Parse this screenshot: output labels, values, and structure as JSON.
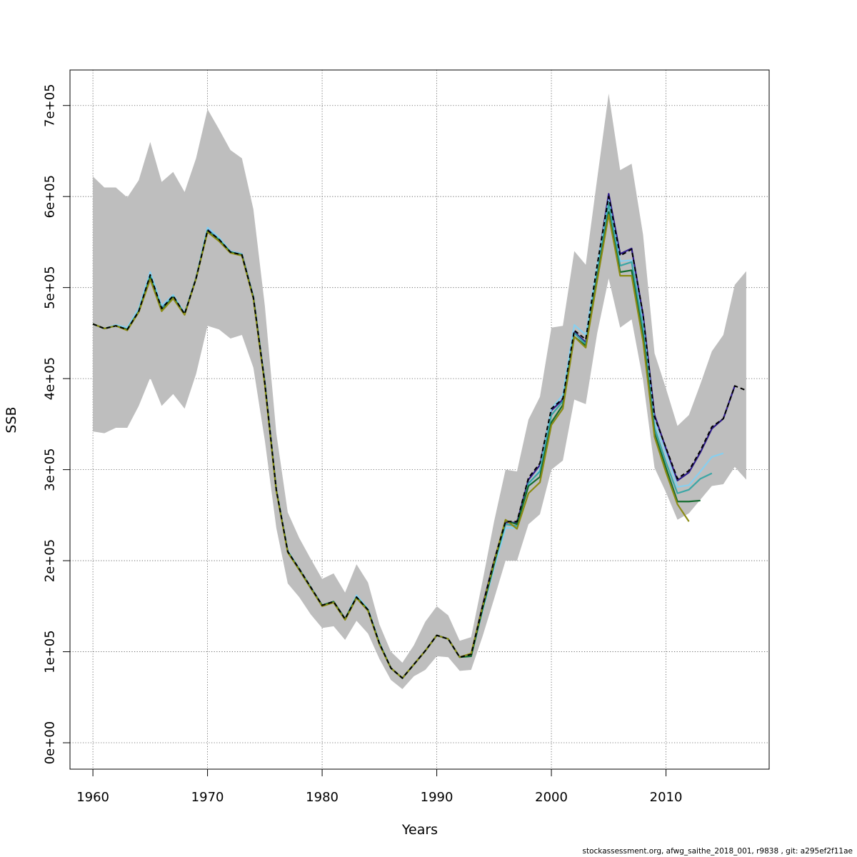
{
  "footer": "stockassessment.org, afwg_saithe_2018_001, r9838 , git: a295ef2f11ae",
  "chart_data": {
    "type": "line",
    "xlabel": "Years",
    "ylabel": "SSB",
    "xlim": [
      1958,
      2019
    ],
    "ylim": [
      -29000,
      739000
    ],
    "x_ticks": [
      1960,
      1970,
      1980,
      1990,
      2000,
      2010
    ],
    "y_ticks": [
      0,
      100000,
      200000,
      300000,
      400000,
      500000,
      600000,
      700000
    ],
    "y_tick_labels": [
      "0e+00",
      "1e+05",
      "2e+05",
      "3e+05",
      "4e+05",
      "5e+05",
      "6e+05",
      "7e+05"
    ],
    "grid": true,
    "legend": "none",
    "band_color": "#bebebe",
    "confidence_band": {
      "x": [
        1960,
        1961,
        1962,
        1963,
        1964,
        1965,
        1966,
        1967,
        1968,
        1969,
        1970,
        1971,
        1972,
        1973,
        1974,
        1975,
        1976,
        1977,
        1978,
        1979,
        1980,
        1981,
        1982,
        1983,
        1984,
        1985,
        1986,
        1987,
        1988,
        1989,
        1990,
        1991,
        1992,
        1993,
        1994,
        1995,
        1996,
        1997,
        1998,
        1999,
        2000,
        2001,
        2002,
        2003,
        2004,
        2005,
        2006,
        2007,
        2008,
        2009,
        2010,
        2011,
        2012,
        2013,
        2014,
        2015,
        2016,
        2017
      ],
      "upper": [
        622000,
        610000,
        610000,
        599000,
        618000,
        660000,
        616000,
        627000,
        605000,
        642000,
        696000,
        674000,
        651000,
        642000,
        586000,
        480000,
        340000,
        253000,
        225000,
        202000,
        180000,
        186000,
        165000,
        196000,
        176000,
        130000,
        100000,
        88000,
        107000,
        133000,
        150000,
        140000,
        112000,
        116000,
        178000,
        243000,
        300000,
        298000,
        355000,
        380000,
        456000,
        458000,
        540000,
        525000,
        620000,
        713000,
        629000,
        636000,
        558000,
        428000,
        389000,
        348000,
        360000,
        394000,
        430000,
        448000,
        503000,
        518000
      ],
      "lower": [
        342000,
        340000,
        346000,
        346000,
        370000,
        401000,
        370000,
        383000,
        367000,
        405000,
        458000,
        454000,
        444000,
        448000,
        412000,
        332000,
        236000,
        175000,
        160000,
        141000,
        126000,
        128000,
        113000,
        134000,
        120000,
        92000,
        69000,
        59000,
        73000,
        80000,
        95000,
        94000,
        79000,
        80000,
        117000,
        158000,
        200000,
        200000,
        240000,
        251000,
        300000,
        310000,
        377000,
        372000,
        450000,
        510000,
        456000,
        465000,
        398000,
        302000,
        275000,
        245000,
        252000,
        267000,
        282000,
        284000,
        303000,
        289000
      ]
    },
    "series": [
      {
        "color": "#000000",
        "dash": true,
        "x": [
          1960,
          1961,
          1962,
          1963,
          1964,
          1965,
          1966,
          1967,
          1968,
          1969,
          1970,
          1971,
          1972,
          1973,
          1974,
          1975,
          1976,
          1977,
          1978,
          1979,
          1980,
          1981,
          1982,
          1983,
          1984,
          1985,
          1986,
          1987,
          1988,
          1989,
          1990,
          1991,
          1992,
          1993,
          1994,
          1995,
          1996,
          1997,
          1998,
          1999,
          2000,
          2001,
          2002,
          2003,
          2004,
          2005,
          2006,
          2007,
          2008,
          2009,
          2010,
          2011,
          2012,
          2013,
          2014,
          2015,
          2016,
          2017
        ],
        "y": [
          460000,
          455000,
          458000,
          454000,
          474000,
          514000,
          477000,
          491000,
          471000,
          510000,
          563000,
          553000,
          539000,
          536000,
          489000,
          395000,
          278000,
          210000,
          191000,
          171000,
          151000,
          155000,
          136000,
          160000,
          146000,
          109000,
          82000,
          71000,
          86000,
          101000,
          118000,
          114000,
          94000,
          97000,
          150000,
          200000,
          243000,
          243000,
          291000,
          307000,
          367000,
          378000,
          453000,
          443000,
          525000,
          600000,
          535000,
          542000,
          470000,
          358000,
          324000,
          290000,
          299000,
          321000,
          347000,
          356000,
          392000,
          387000
        ]
      },
      {
        "color": "#2e1a8a",
        "x": [
          1960,
          1961,
          1962,
          1963,
          1964,
          1965,
          1966,
          1967,
          1968,
          1969,
          1970,
          1971,
          1972,
          1973,
          1974,
          1975,
          1976,
          1977,
          1978,
          1979,
          1980,
          1981,
          1982,
          1983,
          1984,
          1985,
          1986,
          1987,
          1988,
          1989,
          1990,
          1991,
          1992,
          1993,
          1994,
          1995,
          1996,
          1997,
          1998,
          1999,
          2000,
          2001,
          2002,
          2003,
          2004,
          2005,
          2006,
          2007,
          2008,
          2009,
          2010,
          2011,
          2012,
          2013,
          2014,
          2015,
          2016
        ],
        "y": [
          460000,
          455000,
          458000,
          454000,
          474000,
          515000,
          478000,
          491000,
          471000,
          511000,
          564000,
          554000,
          540000,
          537000,
          490000,
          396000,
          278000,
          210000,
          191000,
          171000,
          151000,
          155000,
          136000,
          160000,
          146000,
          109000,
          82000,
          71000,
          86000,
          101000,
          118000,
          114000,
          94000,
          97000,
          151000,
          200000,
          242000,
          242000,
          289000,
          305000,
          365000,
          377000,
          451000,
          440000,
          523000,
          603000,
          537000,
          543000,
          470000,
          360000,
          323000,
          288000,
          297000,
          319000,
          345000,
          356000,
          392000
        ]
      },
      {
        "color": "#87cfef",
        "x": [
          1960,
          1961,
          1962,
          1963,
          1964,
          1965,
          1966,
          1967,
          1968,
          1969,
          1970,
          1971,
          1972,
          1973,
          1974,
          1975,
          1976,
          1977,
          1978,
          1979,
          1980,
          1981,
          1982,
          1983,
          1984,
          1985,
          1986,
          1987,
          1988,
          1989,
          1990,
          1991,
          1992,
          1993,
          1994,
          1995,
          1996,
          1997,
          1998,
          1999,
          2000,
          2001,
          2002,
          2003,
          2004,
          2005,
          2006,
          2007,
          2008,
          2009,
          2010,
          2011,
          2012,
          2013,
          2014,
          2015
        ],
        "y": [
          460000,
          455000,
          459000,
          456000,
          477000,
          517000,
          480000,
          492000,
          472000,
          511000,
          566000,
          555000,
          540000,
          537000,
          490000,
          396000,
          278000,
          211000,
          191000,
          171000,
          151000,
          155000,
          136000,
          162000,
          147000,
          110000,
          82000,
          71000,
          86000,
          101000,
          118000,
          114000,
          94000,
          95000,
          145000,
          192000,
          236000,
          236000,
          283000,
          300000,
          367000,
          382000,
          459000,
          448000,
          525000,
          596000,
          529000,
          530000,
          460000,
          352000,
          317000,
          281000,
          283000,
          298000,
          314000,
          318000
        ]
      },
      {
        "color": "#3aa6a6",
        "x": [
          1960,
          1961,
          1962,
          1963,
          1964,
          1965,
          1966,
          1967,
          1968,
          1969,
          1970,
          1971,
          1972,
          1973,
          1974,
          1975,
          1976,
          1977,
          1978,
          1979,
          1980,
          1981,
          1982,
          1983,
          1984,
          1985,
          1986,
          1987,
          1988,
          1989,
          1990,
          1991,
          1992,
          1993,
          1994,
          1995,
          1996,
          1997,
          1998,
          1999,
          2000,
          2001,
          2002,
          2003,
          2004,
          2005,
          2006,
          2007,
          2008,
          2009,
          2010,
          2011,
          2012,
          2013,
          2014
        ],
        "y": [
          460000,
          455000,
          458000,
          454000,
          474000,
          513000,
          477000,
          490000,
          471000,
          510000,
          563000,
          553000,
          539000,
          536000,
          489000,
          395000,
          278000,
          210000,
          191000,
          171000,
          151000,
          155000,
          136000,
          160000,
          146000,
          109000,
          82000,
          71000,
          86000,
          101000,
          118000,
          114000,
          94000,
          96000,
          148000,
          197000,
          240000,
          238000,
          285000,
          298000,
          360000,
          375000,
          450000,
          438000,
          516000,
          592000,
          524000,
          528000,
          455000,
          346000,
          308000,
          274000,
          278000,
          290000,
          296000
        ]
      },
      {
        "color": "#136b2e",
        "x": [
          1960,
          1961,
          1962,
          1963,
          1964,
          1965,
          1966,
          1967,
          1968,
          1969,
          1970,
          1971,
          1972,
          1973,
          1974,
          1975,
          1976,
          1977,
          1978,
          1979,
          1980,
          1981,
          1982,
          1983,
          1984,
          1985,
          1986,
          1987,
          1988,
          1989,
          1990,
          1991,
          1992,
          1993,
          1994,
          1995,
          1996,
          1997,
          1998,
          1999,
          2000,
          2001,
          2002,
          2003,
          2004,
          2005,
          2006,
          2007,
          2008,
          2009,
          2010,
          2011,
          2012,
          2013
        ],
        "y": [
          460000,
          455000,
          458000,
          454000,
          474000,
          511000,
          475000,
          489000,
          471000,
          510000,
          562000,
          552000,
          539000,
          536000,
          489000,
          394000,
          277000,
          210000,
          190000,
          170000,
          151000,
          155000,
          136000,
          160000,
          146000,
          109000,
          82000,
          71000,
          86000,
          101000,
          118000,
          114000,
          94000,
          95000,
          147000,
          196000,
          244000,
          240000,
          282000,
          292000,
          352000,
          371000,
          446000,
          436000,
          511000,
          583000,
          517000,
          519000,
          446000,
          340000,
          302000,
          265000,
          265000,
          266000
        ]
      },
      {
        "color": "#8b8b13",
        "x": [
          1960,
          1961,
          1962,
          1963,
          1964,
          1965,
          1966,
          1967,
          1968,
          1969,
          1970,
          1971,
          1972,
          1973,
          1974,
          1975,
          1976,
          1977,
          1978,
          1979,
          1980,
          1981,
          1982,
          1983,
          1984,
          1985,
          1986,
          1987,
          1988,
          1989,
          1990,
          1991,
          1992,
          1993,
          1994,
          1995,
          1996,
          1997,
          1998,
          1999,
          2000,
          2001,
          2002,
          2003,
          2004,
          2005,
          2006,
          2007,
          2008,
          2009,
          2010,
          2011,
          2012
        ],
        "y": [
          460000,
          455000,
          458000,
          453000,
          473000,
          509000,
          474000,
          488000,
          470000,
          510000,
          561000,
          551000,
          538000,
          535000,
          488000,
          393000,
          277000,
          209000,
          190000,
          170000,
          150000,
          154000,
          135000,
          159000,
          145000,
          108000,
          82000,
          71000,
          86000,
          101000,
          118000,
          114000,
          94000,
          98000,
          150000,
          199000,
          245000,
          235000,
          274000,
          286000,
          349000,
          367000,
          446000,
          434000,
          508000,
          580000,
          513000,
          513000,
          441000,
          336000,
          297000,
          262000,
          243000
        ]
      }
    ]
  }
}
